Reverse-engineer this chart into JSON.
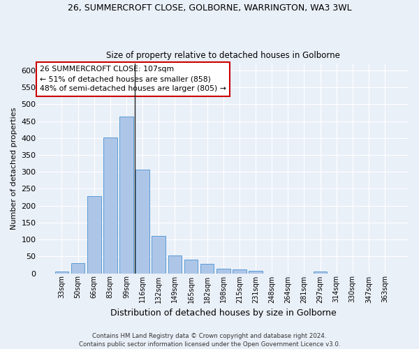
{
  "title1": "26, SUMMERCROFT CLOSE, GOLBORNE, WARRINGTON, WA3 3WL",
  "title2": "Size of property relative to detached houses in Golborne",
  "xlabel": "Distribution of detached houses by size in Golborne",
  "ylabel": "Number of detached properties",
  "footer1": "Contains HM Land Registry data © Crown copyright and database right 2024.",
  "footer2": "Contains public sector information licensed under the Open Government Licence v3.0.",
  "annotation_line1": "26 SUMMERCROFT CLOSE: 107sqm",
  "annotation_line2": "← 51% of detached houses are smaller (858)",
  "annotation_line3": "48% of semi-detached houses are larger (805) →",
  "categories": [
    "33sqm",
    "50sqm",
    "66sqm",
    "83sqm",
    "99sqm",
    "116sqm",
    "132sqm",
    "149sqm",
    "165sqm",
    "182sqm",
    "198sqm",
    "215sqm",
    "231sqm",
    "248sqm",
    "264sqm",
    "281sqm",
    "297sqm",
    "314sqm",
    "330sqm",
    "347sqm",
    "363sqm"
  ],
  "heights": [
    5,
    30,
    228,
    402,
    464,
    306,
    110,
    53,
    40,
    27,
    13,
    12,
    7,
    0,
    0,
    0,
    5,
    0,
    0,
    0,
    0
  ],
  "bar_color": "#adc6e8",
  "bar_edge_color": "#5a9bd5",
  "vline_x_index": 4.5,
  "bg_color": "#eaf0f8",
  "grid_color": "#ffffff",
  "annotation_box_color": "#ffffff",
  "annotation_box_edge": "#cc0000",
  "ylim": [
    0,
    620
  ],
  "yticks": [
    0,
    50,
    100,
    150,
    200,
    250,
    300,
    350,
    400,
    450,
    500,
    550,
    600
  ]
}
